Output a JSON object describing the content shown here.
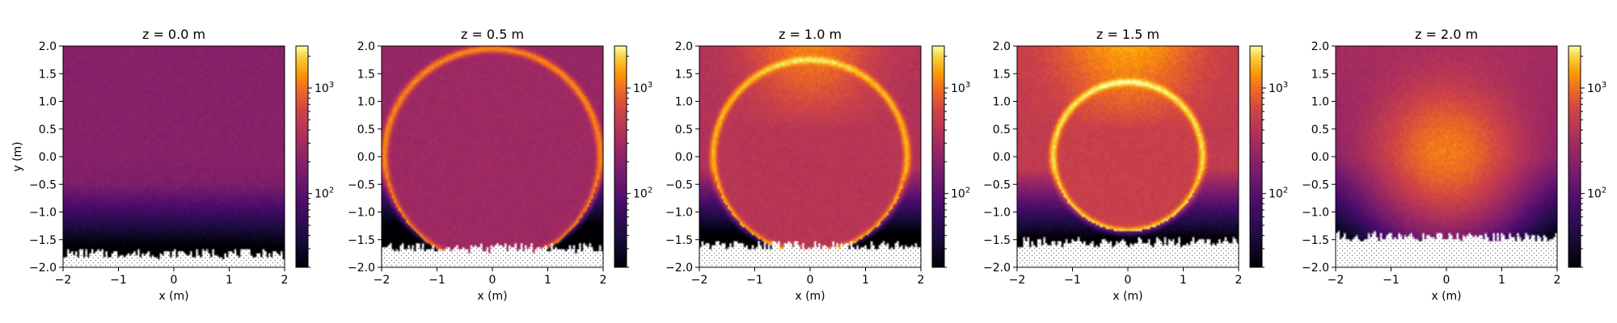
{
  "chart_data": {
    "type": "heatmap",
    "colormap": "inferno",
    "color_scale": "log",
    "color_range": [
      20,
      2500
    ],
    "colorbar_ticks": [
      {
        "value": 100,
        "label": "10²",
        "base": "10",
        "exp": "2"
      },
      {
        "value": 1000,
        "label": "10³",
        "base": "10",
        "exp": "3"
      }
    ],
    "xlabel": "x (m)",
    "ylabel": "y (m)",
    "xlim": [
      -2,
      2
    ],
    "ylim": [
      -2,
      2
    ],
    "xticks": [
      {
        "value": -2,
        "label": "−2"
      },
      {
        "value": -1,
        "label": "−1"
      },
      {
        "value": 0,
        "label": "0"
      },
      {
        "value": 1,
        "label": "1"
      },
      {
        "value": 2,
        "label": "2"
      }
    ],
    "yticks": [
      {
        "value": -2.0,
        "label": "−2.0"
      },
      {
        "value": -1.5,
        "label": "−1.5"
      },
      {
        "value": -1.0,
        "label": "−1.0"
      },
      {
        "value": -0.5,
        "label": "−0.5"
      },
      {
        "value": 0.0,
        "label": "0.0"
      },
      {
        "value": 0.5,
        "label": "0.5"
      },
      {
        "value": 1.0,
        "label": "1.0"
      },
      {
        "value": 1.5,
        "label": "1.5"
      },
      {
        "value": 2.0,
        "label": "2.0"
      }
    ],
    "panels": [
      {
        "title": "z = 0.0 m",
        "z": 0.0,
        "ring_center_y": 0.0,
        "ring_radius": 2.0,
        "peak_value": 250,
        "bg_value": 200,
        "no_data_below_y": -1.75
      },
      {
        "title": "z = 0.5 m",
        "z": 0.5,
        "ring_center_y": 0.0,
        "ring_radius": 1.95,
        "peak_value": 1200,
        "bg_value": 280,
        "no_data_below_y": -1.65
      },
      {
        "title": "z = 1.0 m",
        "z": 1.0,
        "ring_center_y": 0.0,
        "ring_radius": 1.75,
        "peak_value": 1600,
        "bg_value": 420,
        "no_data_below_y": -1.6
      },
      {
        "title": "z = 1.5 m",
        "z": 1.5,
        "ring_center_y": 0.0,
        "ring_radius": 1.35,
        "peak_value": 2000,
        "bg_value": 550,
        "no_data_below_y": -1.55
      },
      {
        "title": "z = 2.0 m",
        "z": 2.0,
        "ring_center_y": 0.0,
        "ring_radius": 0.0,
        "peak_value": 900,
        "bg_value": 200,
        "no_data_below_y": -1.45
      }
    ]
  }
}
